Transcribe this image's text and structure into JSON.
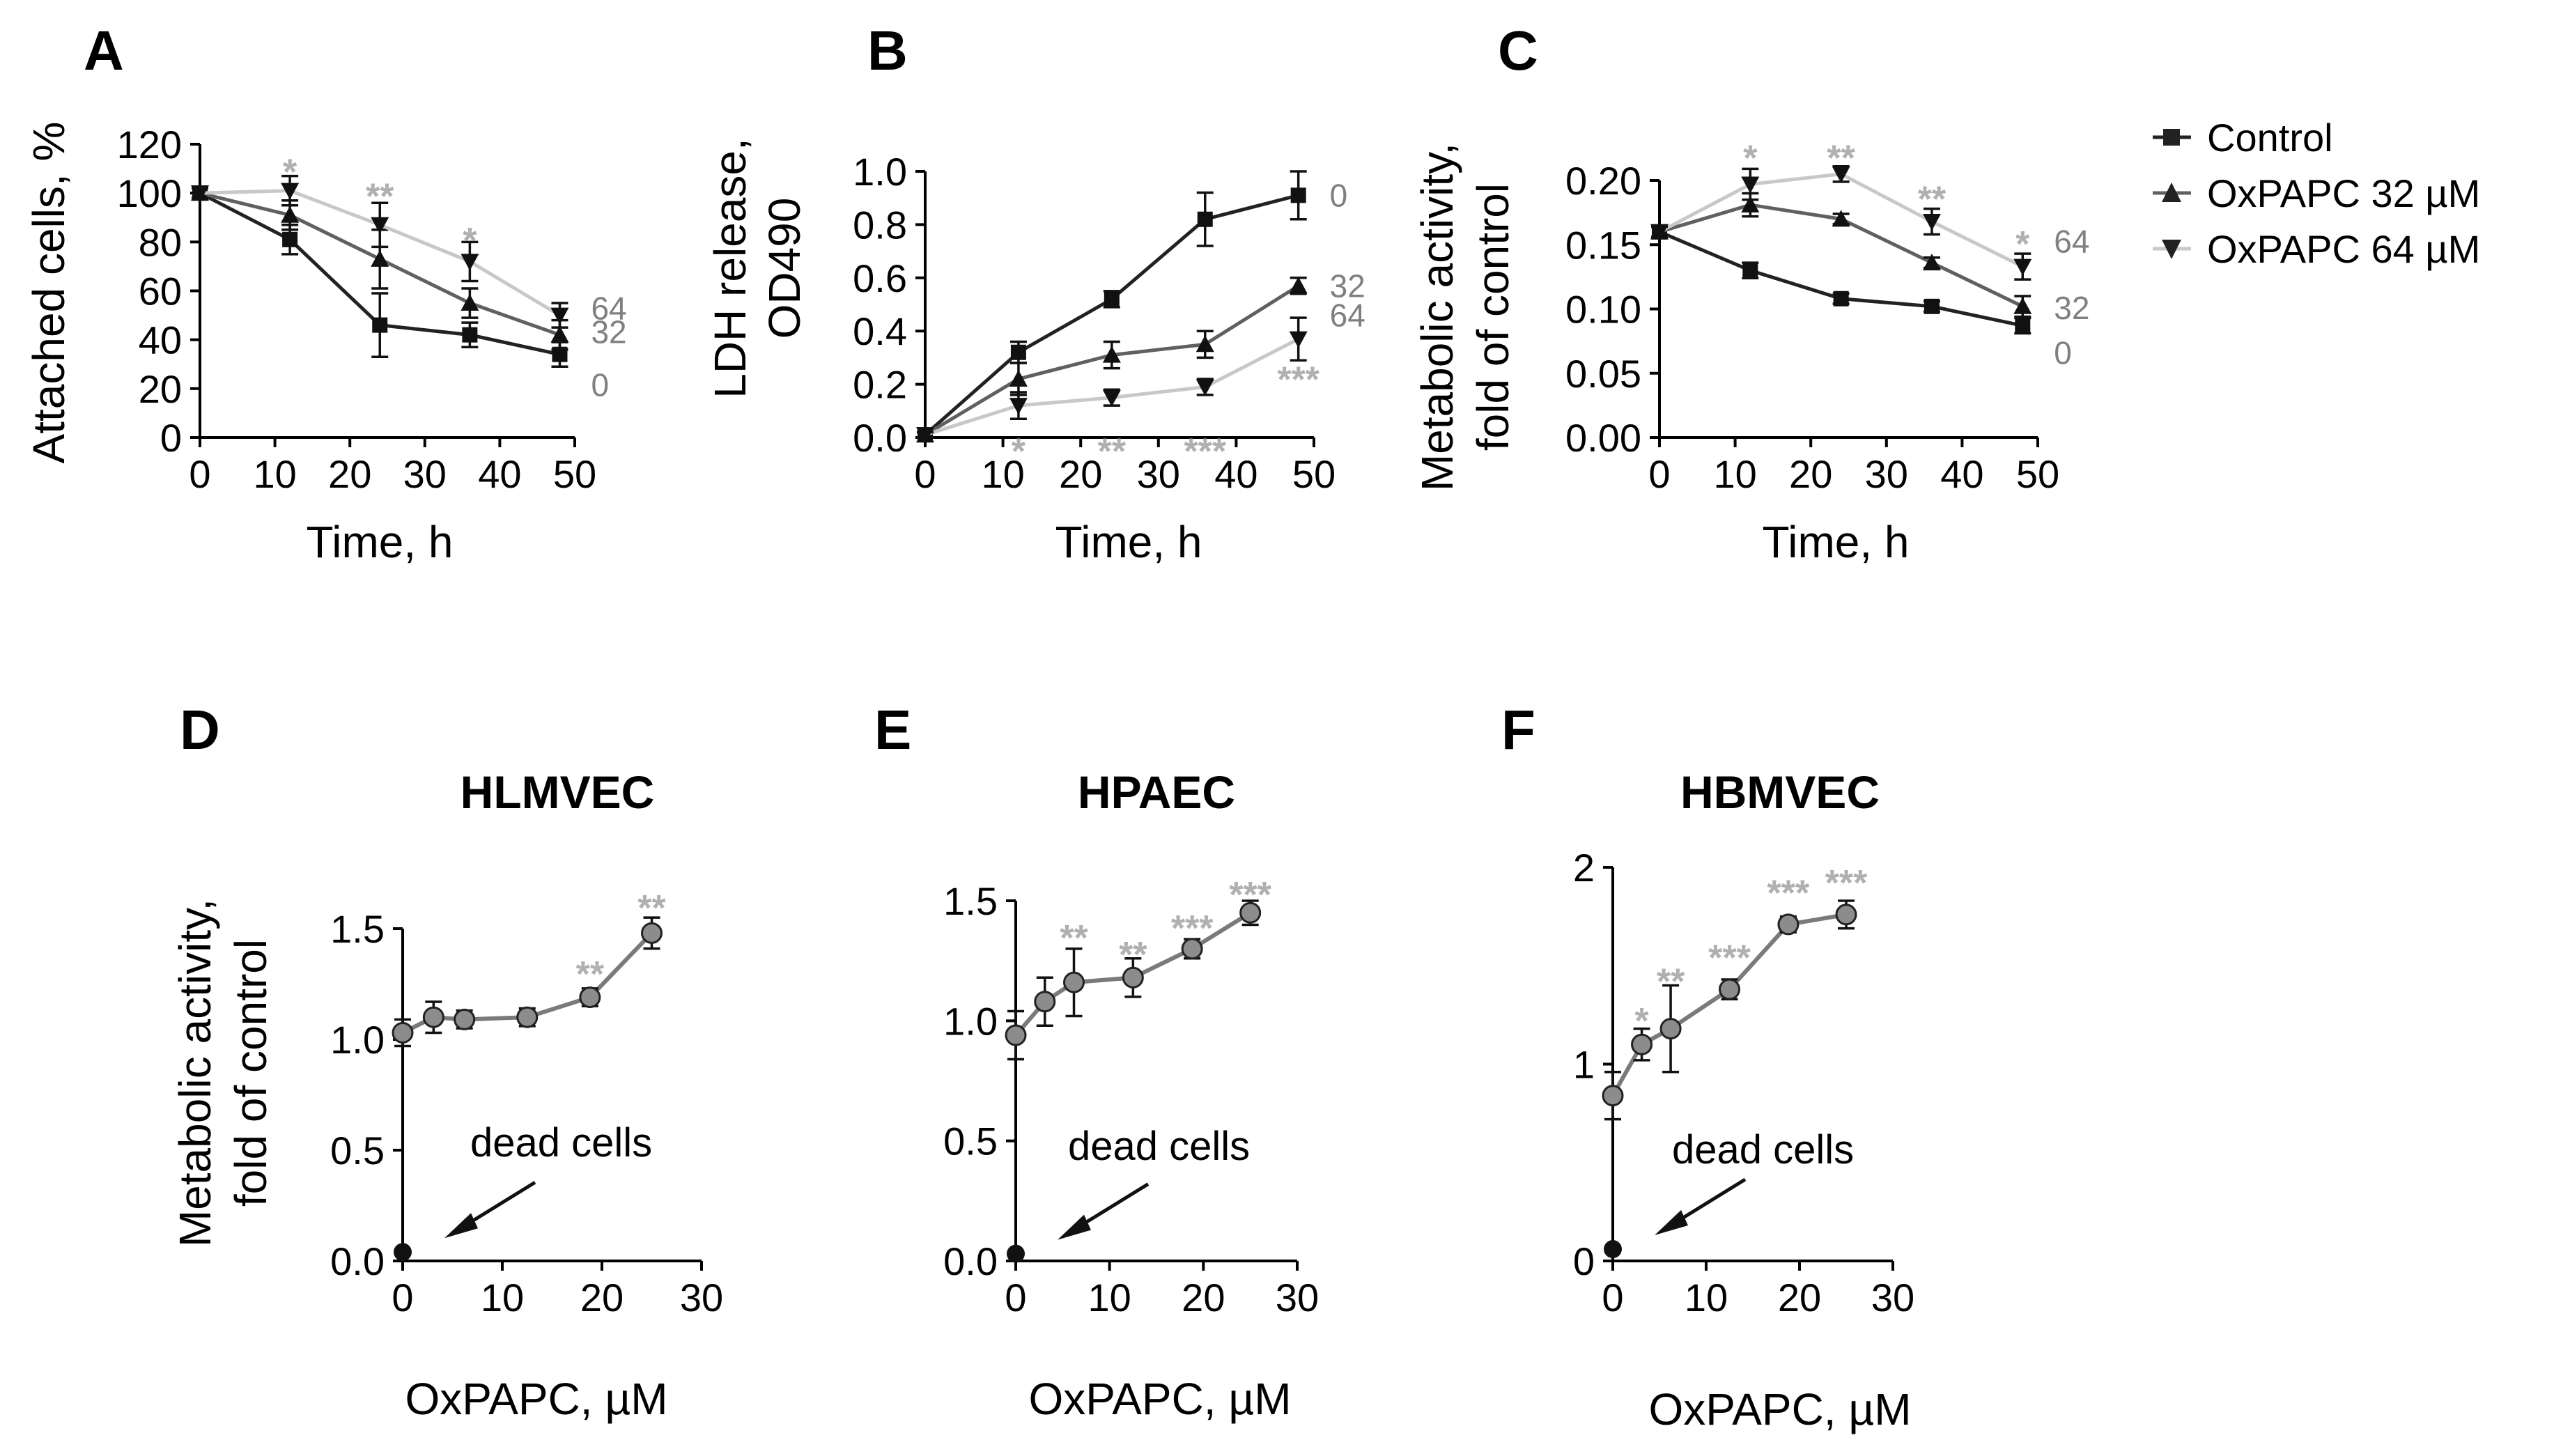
{
  "legend": {
    "entries": [
      {
        "label": "Control",
        "color": "#222222",
        "marker": "square"
      },
      {
        "label": "OxPAPC  32 µM",
        "color": "#606060",
        "marker": "triangle-up"
      },
      {
        "label": "OxPAPC  64 µM",
        "color": "#c8c8c8",
        "marker": "triangle-down"
      }
    ]
  },
  "colors": {
    "star": "#b0b0b0",
    "series": [
      "#222222",
      "#606060",
      "#c8c8c8"
    ],
    "point_fill": "#8c8c8c"
  },
  "chart_data": [
    {
      "panel": "A",
      "type": "line",
      "title": "",
      "ylabel": "Attached cells, %",
      "xlabel": "Time, h",
      "xlim": [
        0,
        50
      ],
      "ylim": [
        0,
        120
      ],
      "xticks": [
        "0",
        "10",
        "20",
        "30",
        "40",
        "50"
      ],
      "yticks": [
        "0",
        "20",
        "40",
        "60",
        "80",
        "100",
        "120"
      ],
      "x": [
        0,
        12,
        24,
        36,
        48
      ],
      "series": [
        {
          "name": "Control",
          "values": [
            100,
            81,
            46,
            42,
            34
          ],
          "errors": [
            2,
            6,
            13,
            5,
            5
          ],
          "end_label": "0"
        },
        {
          "name": "OxPAPC 32 µM",
          "values": [
            100,
            91,
            73,
            55,
            42
          ],
          "errors": [
            2,
            6,
            12,
            6,
            6
          ],
          "end_label": "32"
        },
        {
          "name": "OxPAPC 64 µM",
          "values": [
            100,
            101,
            87,
            72,
            50
          ],
          "errors": [
            2,
            6,
            9,
            8,
            5
          ],
          "end_label": "64"
        }
      ],
      "annotations": [
        {
          "x": 12,
          "y": 111,
          "text": "*"
        },
        {
          "x": 24,
          "y": 101,
          "text": "**"
        },
        {
          "x": 36,
          "y": 83,
          "text": "*"
        }
      ]
    },
    {
      "panel": "B",
      "type": "line",
      "title": "",
      "ylabel": "LDH release, OD490",
      "xlabel": "Time, h",
      "xlim": [
        0,
        50
      ],
      "ylim": [
        0,
        1.0
      ],
      "xticks": [
        "0",
        "10",
        "20",
        "30",
        "40",
        "50"
      ],
      "yticks": [
        "0.0",
        "0.2",
        "0.4",
        "0.6",
        "0.8",
        "1.0"
      ],
      "x": [
        0,
        12,
        24,
        36,
        48
      ],
      "series": [
        {
          "name": "Control",
          "values": [
            0.01,
            0.32,
            0.52,
            0.82,
            0.91
          ],
          "errors": [
            0.01,
            0.04,
            0.03,
            0.1,
            0.09
          ],
          "end_label": "0"
        },
        {
          "name": "OxPAPC 32 µM",
          "values": [
            0.01,
            0.22,
            0.31,
            0.35,
            0.57
          ],
          "errors": [
            0.01,
            0.06,
            0.05,
            0.05,
            0.03
          ],
          "end_label": "32"
        },
        {
          "name": "OxPAPC 64 µM",
          "values": [
            0.01,
            0.12,
            0.15,
            0.19,
            0.37
          ],
          "errors": [
            0.01,
            0.05,
            0.03,
            0.03,
            0.08
          ],
          "end_label": "64"
        }
      ],
      "annotations": [
        {
          "x": 12,
          "y": -0.03,
          "text": "*"
        },
        {
          "x": 24,
          "y": -0.03,
          "text": "**"
        },
        {
          "x": 36,
          "y": -0.03,
          "text": "***"
        },
        {
          "x": 48,
          "y": 0.24,
          "text": "***"
        }
      ]
    },
    {
      "panel": "C",
      "type": "line",
      "title": "",
      "ylabel": "Metabolic activity, fold of control",
      "xlabel": "Time, h",
      "xlim": [
        0,
        50
      ],
      "ylim": [
        0,
        0.2
      ],
      "xticks": [
        "0",
        "10",
        "20",
        "30",
        "40",
        "50"
      ],
      "yticks": [
        "0.00",
        "0.05",
        "0.10",
        "0.15",
        "0.20"
      ],
      "x": [
        0,
        12,
        24,
        36,
        48
      ],
      "series": [
        {
          "name": "Control",
          "values": [
            0.16,
            0.13,
            0.108,
            0.102,
            0.087
          ],
          "errors": [
            0.004,
            0.006,
            0.004,
            0.004,
            0.006
          ],
          "end_label": "0"
        },
        {
          "name": "OxPAPC 32 µM",
          "values": [
            0.16,
            0.181,
            0.17,
            0.136,
            0.102
          ],
          "errors": [
            0.004,
            0.009,
            0.004,
            0.004,
            0.008
          ],
          "end_label": "32"
        },
        {
          "name": "OxPAPC 64 µM",
          "values": [
            0.16,
            0.197,
            0.205,
            0.168,
            0.133
          ],
          "errors": [
            0.004,
            0.012,
            0.006,
            0.01,
            0.01
          ],
          "end_label": "64"
        }
      ],
      "annotations": [
        {
          "x": 12,
          "y": 0.222,
          "text": "*"
        },
        {
          "x": 24,
          "y": 0.222,
          "text": "**"
        },
        {
          "x": 36,
          "y": 0.19,
          "text": "**"
        },
        {
          "x": 48,
          "y": 0.155,
          "text": "*"
        }
      ]
    },
    {
      "panel": "D",
      "type": "scatter",
      "title": "HLMVEC",
      "ylabel": "Metabolic activity, fold of control",
      "xlabel": "OxPAPC, µM",
      "xlim": [
        0,
        30
      ],
      "ylim": [
        0,
        1.5
      ],
      "xticks": [
        "0",
        "10",
        "20",
        "30"
      ],
      "yticks": [
        "0.0",
        "0.5",
        "1.0",
        "1.5"
      ],
      "x": [
        0,
        3.1,
        6.2,
        12.5,
        18.8,
        25
      ],
      "values": [
        1.03,
        1.1,
        1.09,
        1.1,
        1.19,
        1.48
      ],
      "errors": [
        0.06,
        0.07,
        0.04,
        0.04,
        0.04,
        0.07
      ],
      "dead_cells": {
        "x": 0,
        "y": 0.04,
        "label": "dead cells"
      },
      "annotations": [
        {
          "x": 18.8,
          "y": 1.32,
          "text": "**"
        },
        {
          "x": 25,
          "y": 1.62,
          "text": "**"
        }
      ]
    },
    {
      "panel": "E",
      "type": "scatter",
      "title": "HPAEC",
      "ylabel": "",
      "xlabel": "OxPAPC, µM",
      "xlim": [
        0,
        30
      ],
      "ylim": [
        0,
        1.5
      ],
      "xticks": [
        "0",
        "10",
        "20",
        "30"
      ],
      "yticks": [
        "0.0",
        "0.5",
        "1.0",
        "1.5"
      ],
      "x": [
        0,
        3.1,
        6.2,
        12.5,
        18.8,
        25
      ],
      "values": [
        0.94,
        1.08,
        1.16,
        1.18,
        1.3,
        1.45
      ],
      "errors": [
        0.1,
        0.1,
        0.14,
        0.08,
        0.04,
        0.05
      ],
      "dead_cells": {
        "x": 0,
        "y": 0.03,
        "label": "dead cells"
      },
      "annotations": [
        {
          "x": 6.2,
          "y": 1.37,
          "text": "**"
        },
        {
          "x": 12.5,
          "y": 1.3,
          "text": "**"
        },
        {
          "x": 18.8,
          "y": 1.41,
          "text": "***"
        },
        {
          "x": 25,
          "y": 1.55,
          "text": "***"
        }
      ]
    },
    {
      "panel": "F",
      "type": "scatter",
      "title": "HBMVEC",
      "ylabel": "",
      "xlabel": "OxPAPC, µM",
      "xlim": [
        0,
        30
      ],
      "ylim": [
        0,
        2
      ],
      "xticks": [
        "0",
        "10",
        "20",
        "30"
      ],
      "yticks": [
        "0",
        "1",
        "2"
      ],
      "x": [
        0,
        3.1,
        6.2,
        12.5,
        18.8,
        25
      ],
      "values": [
        0.84,
        1.1,
        1.18,
        1.38,
        1.71,
        1.76
      ],
      "errors": [
        0.12,
        0.08,
        0.22,
        0.05,
        0.04,
        0.07
      ],
      "dead_cells": {
        "x": 0,
        "y": 0.06,
        "label": "dead cells"
      },
      "annotations": [
        {
          "x": 3.1,
          "y": 1.25,
          "text": "*"
        },
        {
          "x": 6.2,
          "y": 1.45,
          "text": "**"
        },
        {
          "x": 12.5,
          "y": 1.57,
          "text": "***"
        },
        {
          "x": 18.8,
          "y": 1.9,
          "text": "***"
        },
        {
          "x": 25,
          "y": 1.95,
          "text": "***"
        }
      ]
    }
  ]
}
